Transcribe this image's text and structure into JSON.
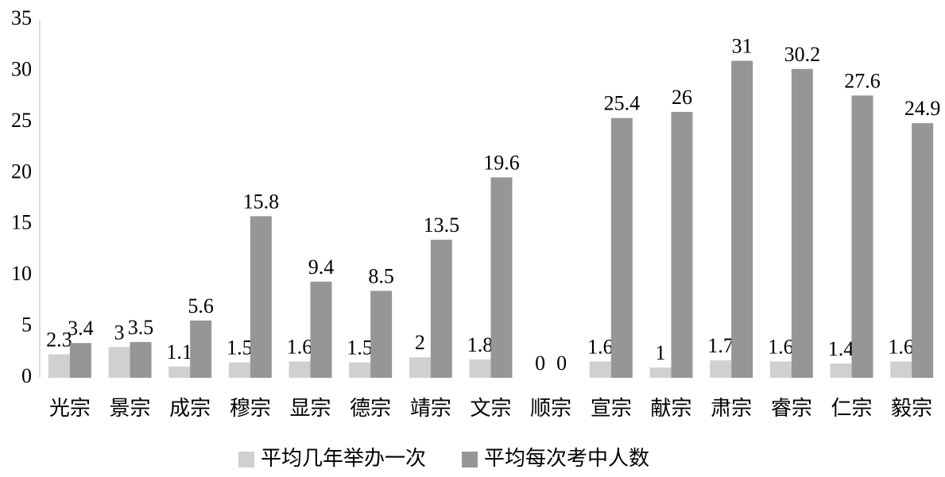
{
  "chart_data": {
    "type": "bar",
    "categories": [
      "光宗",
      "景宗",
      "成宗",
      "穆宗",
      "显宗",
      "德宗",
      "靖宗",
      "文宗",
      "顺宗",
      "宣宗",
      "献宗",
      "肃宗",
      "睿宗",
      "仁宗",
      "毅宗"
    ],
    "series": [
      {
        "name": "平均几年举办一次",
        "color": "#d0d0d0",
        "values": [
          2.3,
          3,
          1.1,
          1.5,
          1.6,
          1.5,
          2,
          1.8,
          0,
          1.6,
          1,
          1.7,
          1.6,
          1.4,
          1.6
        ]
      },
      {
        "name": "平均每次考中人数",
        "color": "#969696",
        "values": [
          3.4,
          3.5,
          5.6,
          15.8,
          9.4,
          8.5,
          13.5,
          19.6,
          0,
          25.4,
          26,
          31,
          30.2,
          27.6,
          24.9
        ]
      }
    ],
    "ylim": [
      0,
      35
    ],
    "yticks": [
      0,
      5,
      10,
      15,
      20,
      25,
      30,
      35
    ],
    "grid": false,
    "legend": "bottom"
  }
}
